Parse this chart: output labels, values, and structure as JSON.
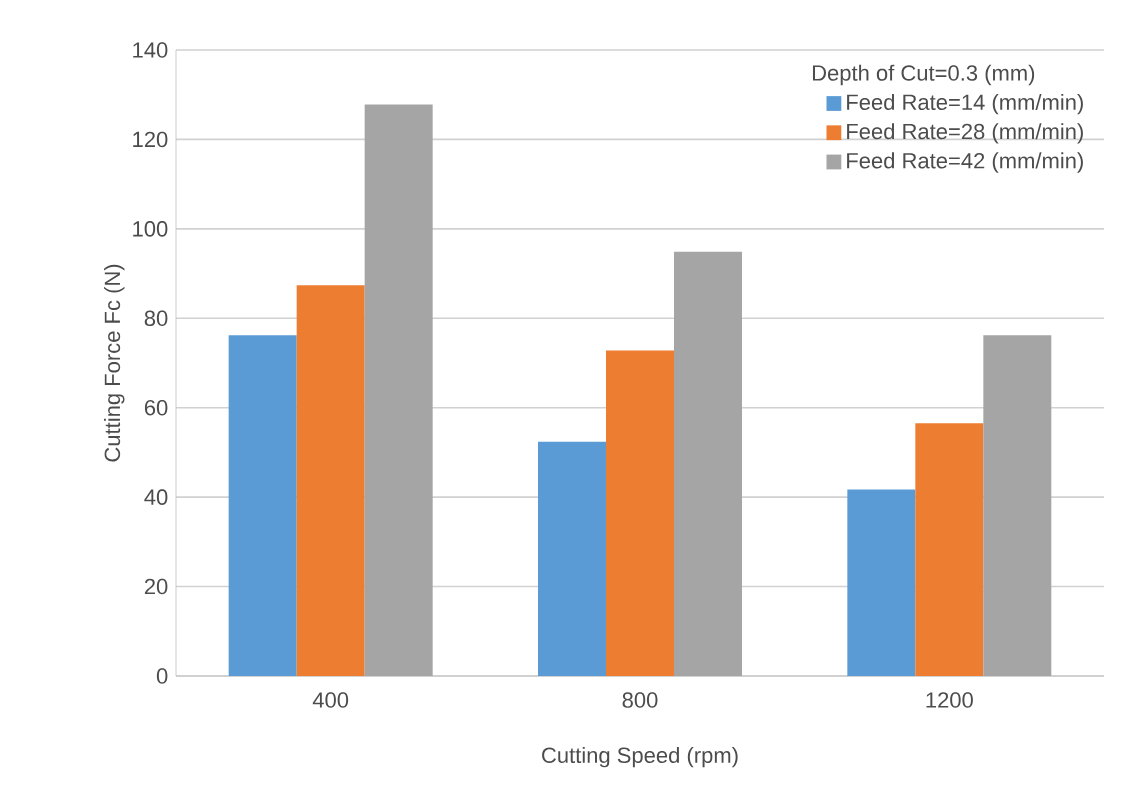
{
  "chart_data": {
    "type": "bar",
    "xlabel": "Cutting Speed (rpm)",
    "ylabel": "Cutting Force Fc (N)",
    "legend_title": "Depth of Cut=0.3 (mm)",
    "categories": [
      "400",
      "800",
      "1200"
    ],
    "series": [
      {
        "name": "Feed Rate=14 (mm/min)",
        "color": "#5b9bd5",
        "values": [
          76.2,
          52.4,
          41.7
        ]
      },
      {
        "name": "Feed Rate=28 (mm/min)",
        "color": "#ed7d31",
        "values": [
          87.4,
          72.8,
          56.5
        ]
      },
      {
        "name": "Feed Rate=42 (mm/min)",
        "color": "#a5a5a5",
        "values": [
          127.8,
          94.9,
          76.2
        ]
      }
    ],
    "ylim": [
      0,
      140
    ],
    "yticks": [
      0,
      20,
      40,
      60,
      80,
      100,
      120,
      140
    ],
    "grid": "y",
    "legend": "top right"
  }
}
